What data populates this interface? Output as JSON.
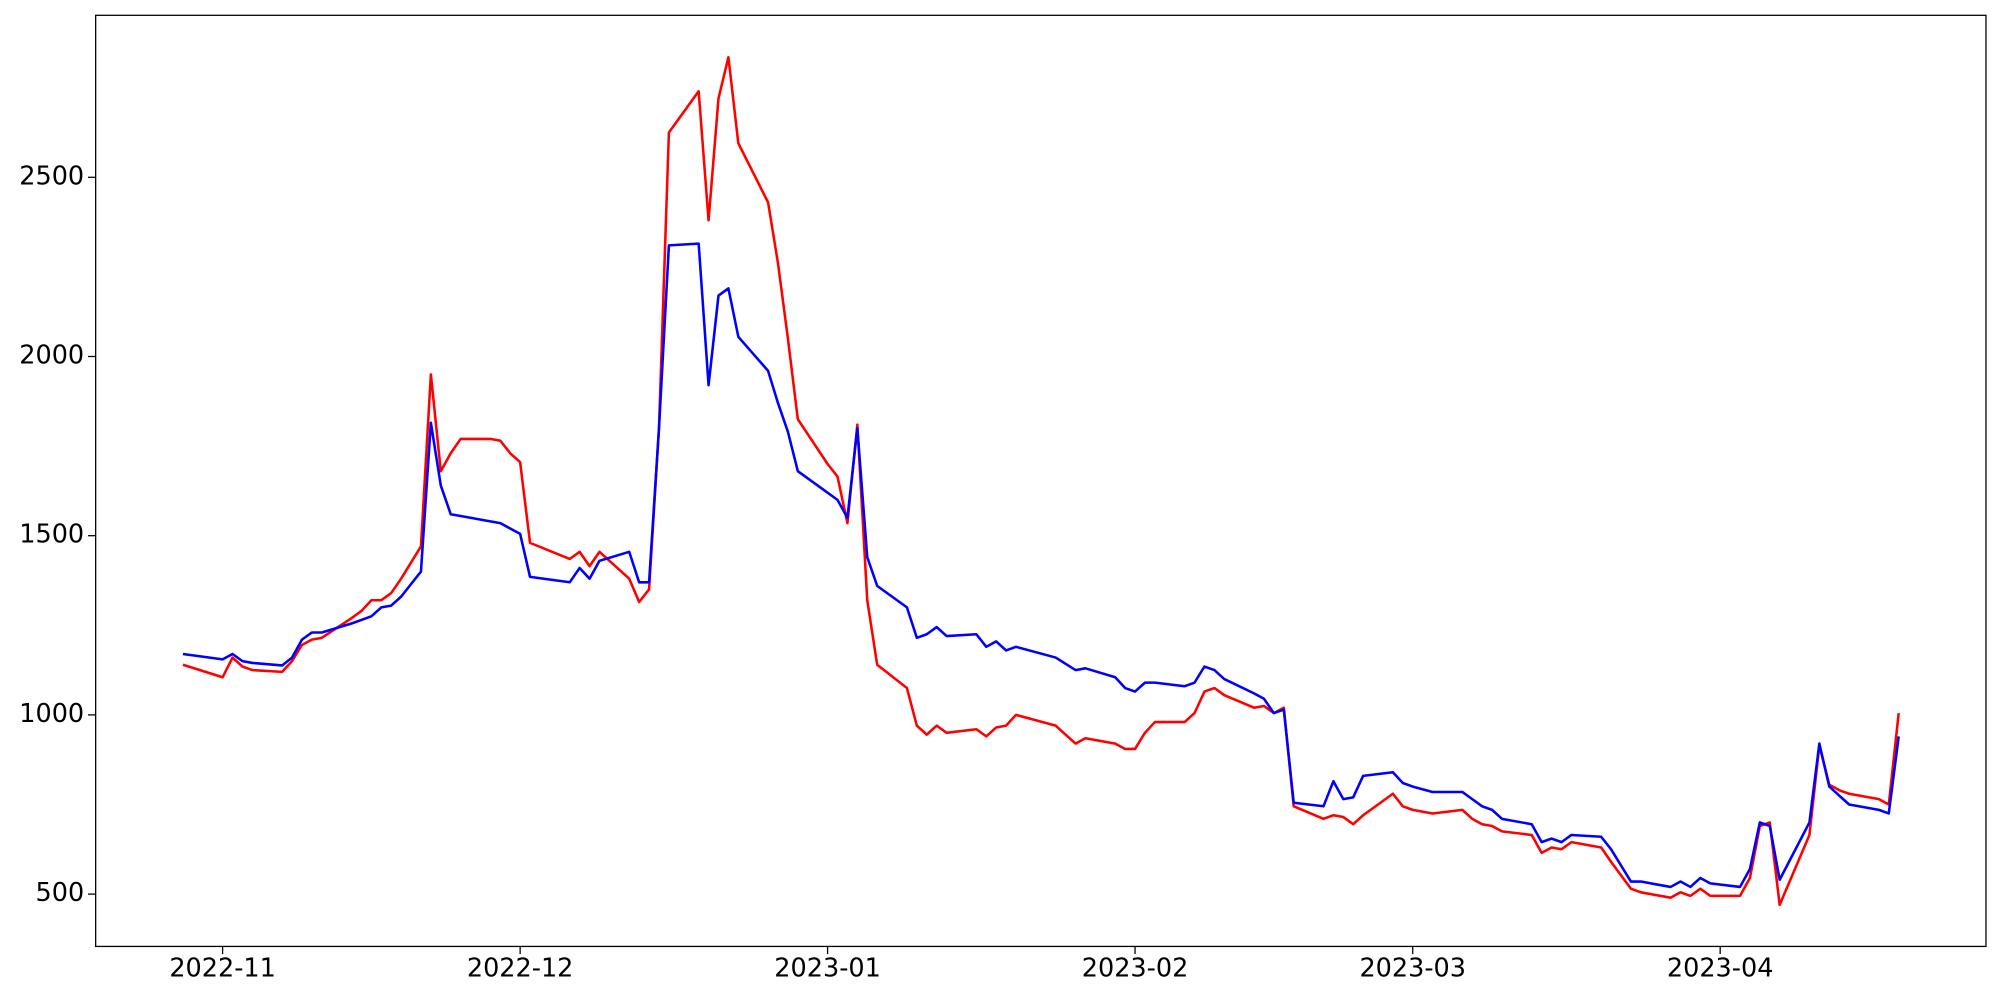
{
  "chart_data": {
    "type": "line",
    "x": [
      -4,
      0,
      1,
      2,
      3,
      6,
      7,
      8,
      9,
      10,
      13,
      14,
      15,
      16,
      17,
      18,
      20,
      21,
      22,
      23,
      24,
      27,
      28,
      29,
      30,
      31,
      35,
      36,
      37,
      38,
      41,
      42,
      43,
      44,
      45,
      48,
      49,
      50,
      51,
      52,
      55,
      56,
      57,
      58,
      61,
      62,
      63,
      64,
      65,
      66,
      69,
      70,
      71,
      72,
      73,
      76,
      77,
      78,
      79,
      80,
      84,
      86,
      87,
      90,
      91,
      92,
      93,
      94,
      97,
      98,
      99,
      100,
      101,
      104,
      105,
      106,
      107,
      108,
      111,
      112,
      113,
      114,
      115,
      118,
      119,
      120,
      122,
      125,
      126,
      127,
      128,
      129,
      132,
      133,
      134,
      135,
      136,
      139,
      140,
      142,
      143,
      146,
      147,
      148,
      149,
      150,
      153,
      154,
      155,
      156,
      157,
      160,
      161,
      162,
      163,
      164,
      167,
      168,
      169
    ],
    "series": [
      {
        "color": "#ff0000",
        "values": [
          1140,
          1105,
          1160,
          1135,
          1125,
          1120,
          1150,
          1195,
          1210,
          1215,
          1270,
          1290,
          1320,
          1320,
          1340,
          1380,
          1470,
          1950,
          1680,
          1730,
          1770,
          1770,
          1765,
          1730,
          1705,
          1480,
          1435,
          1455,
          1415,
          1455,
          1380,
          1315,
          1350,
          1800,
          2625,
          2740,
          2380,
          2720,
          2835,
          2595,
          2430,
          2260,
          2050,
          1825,
          1700,
          1665,
          1535,
          1810,
          1320,
          1140,
          1075,
          970,
          945,
          970,
          950,
          960,
          940,
          965,
          970,
          1000,
          970,
          920,
          935,
          920,
          905,
          905,
          950,
          980,
          980,
          1005,
          1065,
          1075,
          1055,
          1020,
          1025,
          1005,
          1020,
          745,
          710,
          720,
          715,
          695,
          720,
          780,
          745,
          735,
          725,
          735,
          710,
          695,
          690,
          675,
          665,
          615,
          630,
          625,
          645,
          630,
          590,
          515,
          505,
          490,
          505,
          495,
          515,
          495,
          495,
          545,
          690,
          700,
          470,
          665,
          915,
          805,
          790,
          780,
          765,
          750,
          1005
        ]
      },
      {
        "color": "#0000ff",
        "values": [
          1170,
          1155,
          1170,
          1150,
          1145,
          1138,
          1160,
          1210,
          1230,
          1230,
          1255,
          1265,
          1275,
          1300,
          1305,
          1330,
          1400,
          1815,
          1640,
          1560,
          1555,
          1540,
          1535,
          1520,
          1505,
          1385,
          1370,
          1410,
          1380,
          1430,
          1455,
          1370,
          1370,
          1800,
          2310,
          2315,
          1920,
          2170,
          2190,
          2055,
          1960,
          1870,
          1790,
          1680,
          1620,
          1600,
          1550,
          1800,
          1440,
          1360,
          1300,
          1215,
          1225,
          1245,
          1220,
          1225,
          1190,
          1205,
          1180,
          1190,
          1160,
          1125,
          1130,
          1105,
          1075,
          1065,
          1090,
          1090,
          1080,
          1090,
          1135,
          1125,
          1100,
          1060,
          1045,
          1005,
          1015,
          755,
          745,
          815,
          765,
          770,
          830,
          840,
          810,
          800,
          785,
          785,
          765,
          745,
          735,
          710,
          695,
          645,
          655,
          645,
          665,
          660,
          625,
          535,
          535,
          520,
          535,
          520,
          545,
          530,
          520,
          570,
          700,
          690,
          540,
          700,
          920,
          800,
          775,
          750,
          735,
          725,
          940
        ]
      }
    ],
    "xlim": [
      -12.8,
      177.8
    ],
    "xticks": [
      {
        "value": 0,
        "label": "2022-11"
      },
      {
        "value": 30,
        "label": "2022-12"
      },
      {
        "value": 61,
        "label": "2023-01"
      },
      {
        "value": 92,
        "label": "2023-02"
      },
      {
        "value": 120,
        "label": "2023-03"
      },
      {
        "value": 151,
        "label": "2023-04"
      }
    ],
    "ylim": [
      354,
      2952
    ],
    "yticks": [
      500,
      1000,
      1500,
      2000,
      2500
    ],
    "grid": false
  }
}
